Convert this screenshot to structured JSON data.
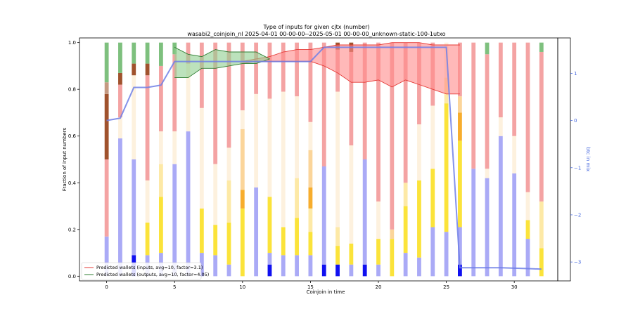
{
  "chart_data": {
    "type": "bar",
    "title": "Type of inputs for given cjtx (number)",
    "subtitle": "wasabi2_coinjoin_nl 2025-04-01 00-00-00--2025-05-01 00-00-00_unknown-static-100-1utxo",
    "xlabel": "Coinjoin in time",
    "ylabel": "Fraction of input numbers",
    "ylabel_right": "btc in mix",
    "xlim": [
      -2,
      33.2
    ],
    "ylim": [
      -0.02,
      1.02
    ],
    "ylim_right": [
      -3.4,
      1.75
    ],
    "xticks": [
      0,
      5,
      10,
      15,
      20,
      25,
      30
    ],
    "xtick_labels": [
      "0",
      "5",
      "10",
      "15",
      "20",
      "25",
      "30"
    ],
    "yticks": [
      0.0,
      0.2,
      0.4,
      0.6,
      0.8,
      1.0
    ],
    "ytick_labels": [
      "0.0",
      "0.2",
      "0.4",
      "0.6",
      "0.8",
      "1.0"
    ],
    "yticks_right": [
      1,
      0,
      -1,
      -2,
      -3
    ],
    "ytick_labels_right": [
      "1",
      "0",
      "−1",
      "−2",
      "−3"
    ],
    "segment_order": [
      "blue_dark",
      "blue_light",
      "yellow",
      "yellow_light",
      "orange",
      "orange_light",
      "cream",
      "pink",
      "brown",
      "brown_light",
      "green"
    ],
    "segment_colors": {
      "blue_dark": "#1010f0",
      "blue_light": "#aaaaf6",
      "yellow": "#fbe33a",
      "yellow_light": "#fde9a6",
      "orange": "#f7ad2d",
      "orange_light": "#fbd59a",
      "cream": "#fdf1de",
      "pink": "#f4a3a3",
      "brown": "#a0522d",
      "brown_light": "#c59a82",
      "green": "#7ec07e"
    },
    "categories": [
      0,
      1,
      2,
      3,
      4,
      5,
      6,
      7,
      8,
      9,
      10,
      11,
      12,
      13,
      14,
      15,
      16,
      17,
      18,
      19,
      20,
      21,
      22,
      23,
      24,
      25,
      26,
      27,
      28,
      29,
      30,
      31,
      32
    ],
    "stacks": [
      {
        "blue_light": 0.17,
        "pink": 0.33,
        "brown_light": 0.05,
        "brown": 0.28,
        "green": 0.17
      },
      {
        "blue_light": 0.59,
        "cream": 0.09,
        "pink": 0.14,
        "brown": 0.05,
        "green": 0.13
      },
      {
        "blue_dark": 0.09,
        "blue_light": 0.41,
        "cream": 0.36,
        "brown": 0.05,
        "green": 0.09
      },
      {
        "blue_light": 0.09,
        "yellow": 0.14,
        "cream": 0.18,
        "pink": 0.45,
        "brown": 0.05,
        "green": 0.09
      },
      {
        "blue_light": 0.1,
        "yellow": 0.24,
        "yellow_light": 0.14,
        "cream": 0.14,
        "pink": 0.28,
        "green": 0.1
      },
      {
        "blue_light": 0.48,
        "cream": 0.14,
        "pink": 0.33,
        "green": 0.05
      },
      {
        "blue_light": 0.62,
        "cream": 0.29,
        "pink": 0.09
      },
      {
        "blue_light": 0.1,
        "yellow": 0.19,
        "cream": 0.43,
        "pink": 0.28
      },
      {
        "blue_light": 0.09,
        "yellow": 0.13,
        "cream": 0.26,
        "pink": 0.52
      },
      {
        "blue_light": 0.05,
        "yellow": 0.18,
        "yellow_light": 0.18,
        "cream": 0.14,
        "pink": 0.45
      },
      {
        "yellow": 0.29,
        "orange_light": 0.26,
        "orange": 0.08,
        "cream": 0.08,
        "pink": 0.29
      },
      {
        "blue_light": 0.38,
        "cream": 0.4,
        "pink": 0.22
      },
      {
        "blue_dark": 0.05,
        "blue_light": 0.05,
        "yellow": 0.24,
        "cream": 0.42,
        "pink": 0.24
      },
      {
        "blue_light": 0.09,
        "yellow": 0.12,
        "cream": 0.58,
        "pink": 0.21
      },
      {
        "blue_light": 0.09,
        "yellow": 0.16,
        "yellow_light": 0.17,
        "cream": 0.35,
        "pink": 0.23
      },
      {
        "blue_light": 0.09,
        "yellow": 0.1,
        "yellow_light": 0.1,
        "orange_light": 0.16,
        "orange": 0.09,
        "cream": 0.12,
        "pink": 0.34
      },
      {
        "blue_dark": 0.05,
        "blue_light": 0.42,
        "pink": 0.53
      },
      {
        "blue_dark": 0.05,
        "yellow": 0.08,
        "yellow_light": 0.08,
        "cream": 0.58,
        "pink": 0.18,
        "brown": 0.03
      },
      {
        "blue_light": 0.05,
        "yellow": 0.09,
        "cream": 0.42,
        "pink": 0.4,
        "brown": 0.04
      },
      {
        "blue_dark": 0.05,
        "blue_light": 0.45,
        "pink": 0.5
      },
      {
        "blue_light": 0.05,
        "yellow": 0.11,
        "cream": 0.16,
        "pink": 0.68
      },
      {
        "yellow": 0.16,
        "orange_light": 0.04,
        "pink": 0.8
      },
      {
        "blue_light": 0.1,
        "yellow": 0.2,
        "yellow_light": 0.1,
        "pink": 0.6
      },
      {
        "blue_light": 0.08,
        "yellow": 0.33,
        "cream": 0.24,
        "pink": 0.35
      },
      {
        "blue_light": 0.21,
        "yellow": 0.25,
        "cream": 0.27,
        "pink": 0.27
      },
      {
        "blue_light": 0.19,
        "yellow": 0.55,
        "yellow_light": 0.11,
        "cream": 0.15
      },
      {
        "blue_dark": 0.05,
        "blue_light": 0.16,
        "yellow": 0.37,
        "orange": 0.12,
        "orange_light": 0.07,
        "pink": 0.23
      },
      {
        "blue_light": 0.46,
        "pink": 0.54
      },
      {
        "blue_light": 0.42,
        "cream": 0.04,
        "pink": 0.49,
        "green": 0.05
      },
      {
        "blue_light": 0.6,
        "cream": 0.08,
        "pink": 0.32
      },
      {
        "blue_light": 0.44,
        "cream": 0.16,
        "pink": 0.4
      },
      {
        "blue_light": 0.16,
        "yellow": 0.08,
        "cream": 0.12,
        "pink": 0.64
      },
      {
        "yellow": 0.12,
        "yellow_light": 0.2,
        "pink": 0.64,
        "green": 0.04
      }
    ],
    "series": [
      {
        "name": "Predicted wallets (inputs, avg=10, factor=3.1)",
        "color": "#e53935",
        "fill": "#ff8a8a",
        "x": [
          10,
          11,
          12,
          13,
          14,
          15,
          16,
          17,
          18,
          19,
          20,
          21,
          22,
          23,
          24,
          25,
          26
        ],
        "upper": [
          0.92,
          0.93,
          0.94,
          0.96,
          0.97,
          0.97,
          0.98,
          0.99,
          0.99,
          0.99,
          0.99,
          1.0,
          1.0,
          1.0,
          0.99,
          0.99,
          0.99
        ],
        "lower": [
          0.91,
          0.92,
          0.92,
          0.92,
          0.92,
          0.92,
          0.9,
          0.87,
          0.83,
          0.83,
          0.84,
          0.81,
          0.84,
          0.82,
          0.8,
          0.78,
          0.78
        ]
      },
      {
        "name": "Predicted wallets (outputs, avg=10, factor=4.05)",
        "color": "#2e7d32",
        "fill": "#8fcf8f",
        "x": [
          5,
          6,
          7,
          8,
          9,
          10,
          11,
          12
        ],
        "upper": [
          0.98,
          0.95,
          0.94,
          0.97,
          0.96,
          0.96,
          0.96,
          0.93
        ],
        "lower": [
          0.85,
          0.85,
          0.89,
          0.89,
          0.9,
          0.91,
          0.91,
          0.93
        ]
      }
    ],
    "right_axis_line": {
      "name": "btc in mix",
      "color": "#6f7fe6",
      "x": [
        0,
        1,
        2,
        3,
        4,
        5,
        6,
        7,
        8,
        9,
        10,
        11,
        12,
        13,
        14,
        15,
        16,
        17,
        18,
        19,
        20,
        21,
        22,
        23,
        24,
        25,
        26,
        27,
        28,
        29,
        30,
        31,
        32
      ],
      "y": [
        0.0,
        0.05,
        0.7,
        0.7,
        0.75,
        1.25,
        1.25,
        1.25,
        1.25,
        1.25,
        1.25,
        1.25,
        1.25,
        1.25,
        1.25,
        1.25,
        1.55,
        1.55,
        1.55,
        1.55,
        1.55,
        1.55,
        1.55,
        1.55,
        1.55,
        1.55,
        -3.12,
        -3.12,
        -3.12,
        -3.12,
        -3.13,
        -3.14,
        -3.15
      ]
    },
    "legend": {
      "position": "lower-left",
      "entries": [
        {
          "label": "Predicted wallets (inputs, avg=10, factor=3.1)",
          "color": "#e53935"
        },
        {
          "label": "Predicted wallets (outputs, avg=10, factor=4.05)",
          "color": "#2e7d32"
        }
      ]
    },
    "grid": false
  }
}
